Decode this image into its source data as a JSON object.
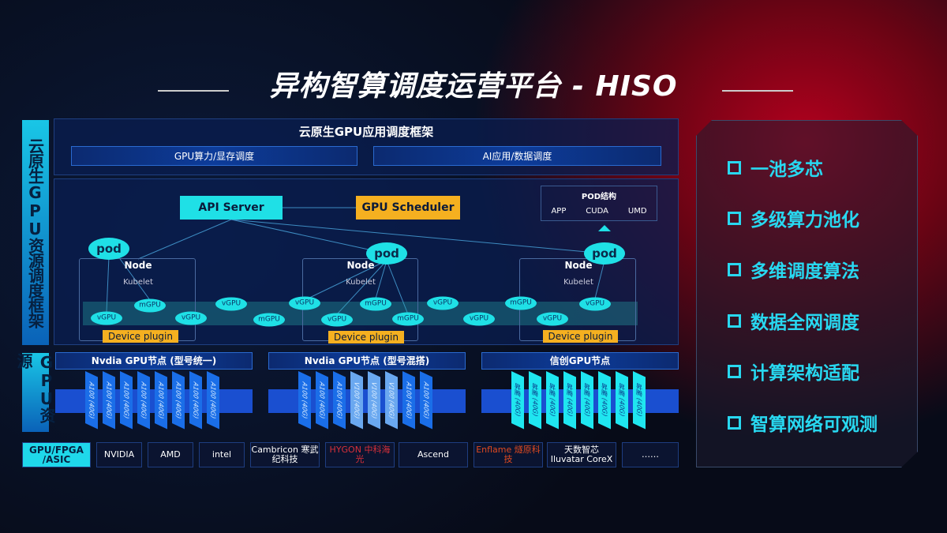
{
  "title": "异构智算调度运营平台 - HISO",
  "left_labels": {
    "framework": "云原生GPU资源调度框架",
    "resources": "GPU资源"
  },
  "header": "云原生GPU应用调度框架",
  "bars": [
    "GPU算力/显存调度",
    "AI应用/数据调度"
  ],
  "api_server": "API Server",
  "gpu_scheduler": "GPU Scheduler",
  "pod_structure": {
    "title": "POD结构",
    "items": [
      "APP",
      "CUDA",
      "UMD"
    ]
  },
  "node_label": "Node",
  "kubelet_label": "Kubelet",
  "device_plugin": "Device plugin",
  "ellipses": [
    "pod",
    "pod",
    "pod",
    "mGPU",
    "vGPU",
    "vGPU",
    "vGPU",
    "mGPU",
    "vGPU",
    "mGPU",
    "vGPU",
    "mGPU",
    "vGPU",
    "vGPU",
    "mGPU",
    "vGPU",
    "vGPU"
  ],
  "gpu_groups": [
    {
      "title": "Nvdia GPU节点 (型号统一)",
      "cards": [
        "A100 (40G)",
        "A100 (40G)",
        "A100 (40G)",
        "A100 (40G)",
        "A100 (40G)",
        "A100 (40G)",
        "A100 (40G)",
        "A100 (40G)"
      ]
    },
    {
      "title": "Nvdia GPU节点 (型号混搭)",
      "cards": [
        "A100 (40G)",
        "A100 (40G)",
        "A100 (40G)",
        "V100 (40G)",
        "V100 (40G)",
        "V100 (40G)",
        "A100 (40G)",
        "A100 (40G)"
      ]
    },
    {
      "title": "信创GPU节点",
      "cards": [
        "昇腾 (40G)",
        "昇腾 (40G)",
        "昇腾 (40G)",
        "昇腾 (40G)",
        "昇腾 (40G)",
        "昇腾 (40G)",
        "昇腾 (40G)",
        "昇腾 (40G)"
      ]
    }
  ],
  "vendor_label": "GPU/FPGA /ASIC",
  "vendors": [
    "NVIDIA",
    "AMD",
    "intel",
    "Cambricon 寒武纪科技",
    "HYGON 中科海光",
    "Ascend",
    "Enflame 燧原科技",
    "天数智芯 Iluvatar CoreX",
    "……"
  ],
  "features": [
    "一池多芯",
    "多级算力池化",
    "多维调度算法",
    "数据全网调度",
    "计算架构适配",
    "智算网络可观测"
  ],
  "colors": {
    "cyan": "#1fe0e6",
    "orange": "#f5b020",
    "feature_text": "#28d8f0"
  }
}
